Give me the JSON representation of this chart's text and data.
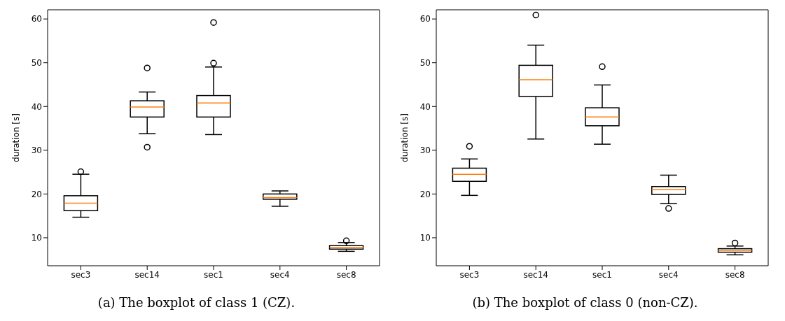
{
  "chart_data": [
    {
      "type": "box",
      "ylabel": "duration [s]",
      "categories": [
        "sec3",
        "sec14",
        "sec1",
        "sec4",
        "sec8"
      ],
      "ylim": [
        3.6,
        62.1
      ],
      "yticks": [
        10,
        20,
        30,
        40,
        50,
        60
      ],
      "annotations": [
        "(a) The boxplot of class 1 (CZ)."
      ],
      "series": [
        {
          "color": "#000000",
          "boxes": [
            {
              "low": 14.7,
              "q1": 16.2,
              "median": 17.9,
              "q3": 19.6,
              "high": 24.5,
              "outliers": [
                25.1
              ]
            },
            {
              "low": 33.8,
              "q1": 37.6,
              "median": 39.9,
              "q3": 41.3,
              "high": 43.3,
              "outliers": [
                48.8,
                30.7
              ]
            },
            {
              "low": 33.6,
              "q1": 37.6,
              "median": 40.8,
              "q3": 42.5,
              "high": 49.0,
              "outliers": [
                49.9,
                59.2
              ]
            },
            {
              "low": 17.2,
              "q1": 18.8,
              "median": 19.2,
              "q3": 20.0,
              "high": 20.7
            },
            {
              "low": 6.9,
              "q1": 7.4,
              "median": 7.8,
              "q3": 8.2,
              "high": 8.9,
              "outliers": [
                9.3
              ]
            }
          ]
        }
      ]
    },
    {
      "type": "box",
      "ylabel": "duration [s]",
      "categories": [
        "sec3",
        "sec14",
        "sec1",
        "sec4",
        "sec8"
      ],
      "ylim": [
        3.6,
        62.1
      ],
      "yticks": [
        10,
        20,
        30,
        40,
        50,
        60
      ],
      "annotations": [
        "(b) The boxplot of class 0 (non-CZ)."
      ],
      "series": [
        {
          "color": "#000000",
          "boxes": [
            {
              "low": 19.7,
              "q1": 22.9,
              "median": 24.5,
              "q3": 25.9,
              "high": 28.0,
              "outliers": [
                30.9
              ]
            },
            {
              "low": 32.6,
              "q1": 42.3,
              "median": 46.1,
              "q3": 49.4,
              "high": 54.0,
              "outliers": [
                60.9
              ]
            },
            {
              "low": 31.4,
              "q1": 35.6,
              "median": 37.6,
              "q3": 39.7,
              "high": 44.9,
              "outliers": [
                49.1
              ]
            },
            {
              "low": 17.8,
              "q1": 19.9,
              "median": 21.0,
              "q3": 21.7,
              "high": 24.3,
              "outliers": [
                16.7
              ]
            },
            {
              "low": 6.1,
              "q1": 6.7,
              "median": 7.1,
              "q3": 7.5,
              "high": 8.1,
              "outliers": [
                8.8
              ]
            }
          ]
        }
      ]
    }
  ]
}
